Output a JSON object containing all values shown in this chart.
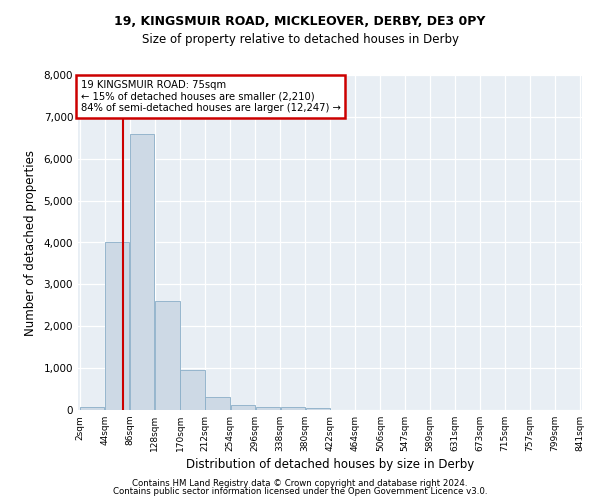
{
  "title1": "19, KINGSMUIR ROAD, MICKLEOVER, DERBY, DE3 0PY",
  "title2": "Size of property relative to detached houses in Derby",
  "xlabel": "Distribution of detached houses by size in Derby",
  "ylabel": "Number of detached properties",
  "footer1": "Contains HM Land Registry data © Crown copyright and database right 2024.",
  "footer2": "Contains public sector information licensed under the Open Government Licence v3.0.",
  "annotation_title": "19 KINGSMUIR ROAD: 75sqm",
  "annotation_line1": "← 15% of detached houses are smaller (2,210)",
  "annotation_line2": "84% of semi-detached houses are larger (12,247) →",
  "property_size": 75,
  "bin_edges": [
    2,
    44,
    86,
    128,
    170,
    212,
    254,
    296,
    338,
    380,
    422,
    464,
    506,
    547,
    589,
    631,
    673,
    715,
    757,
    799,
    841
  ],
  "bar_heights": [
    70,
    4000,
    6600,
    2600,
    950,
    320,
    130,
    80,
    60,
    40,
    0,
    0,
    0,
    0,
    0,
    0,
    0,
    0,
    0,
    0
  ],
  "bar_color": "#cdd9e5",
  "bar_edge_color": "#8aaec8",
  "line_color": "#cc0000",
  "annotation_box_color": "#cc0000",
  "background_color": "#e8eef4",
  "grid_color": "#ffffff",
  "ylim": [
    0,
    8000
  ],
  "yticks": [
    0,
    1000,
    2000,
    3000,
    4000,
    5000,
    6000,
    7000,
    8000
  ]
}
